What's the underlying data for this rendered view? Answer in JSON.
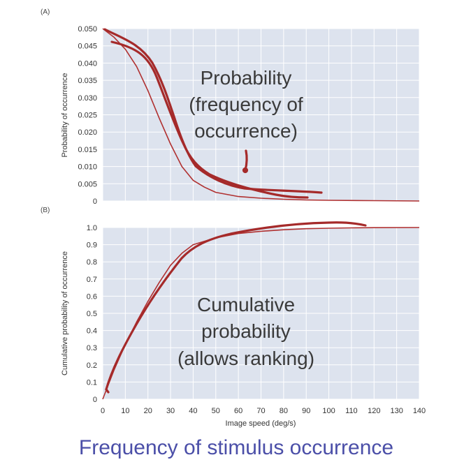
{
  "caption": "Frequency of  stimulus occurrence",
  "colors": {
    "plot_bg": "#dde3ee",
    "grid": "#ffffff",
    "curve": "#b03030",
    "ink": "#a52a2a",
    "caption": "#4b4fa8"
  },
  "chart_data": [
    {
      "panel": "(A)",
      "type": "line",
      "title": "",
      "ylabel": "Probability of occurrence",
      "xlabel": "",
      "xlim": [
        0,
        140
      ],
      "ylim": [
        0,
        0.05
      ],
      "grid": true,
      "yticks": [
        "0",
        "0.005",
        "0.010",
        "0.015",
        "0.020",
        "0.025",
        "0.030",
        "0.035",
        "0.040",
        "0.045",
        "0.050"
      ],
      "x": [
        0,
        5,
        10,
        15,
        20,
        25,
        30,
        35,
        40,
        45,
        50,
        60,
        70,
        80,
        90,
        100,
        120,
        140
      ],
      "values": [
        0.05,
        0.0475,
        0.044,
        0.039,
        0.032,
        0.024,
        0.0165,
        0.01,
        0.006,
        0.004,
        0.0025,
        0.0013,
        0.0008,
        0.0005,
        0.0003,
        0.0002,
        0.0001,
        0.0
      ],
      "annotations": [
        {
          "text": "Probability",
          "x": 68,
          "y": 0.036
        },
        {
          "text": "(frequency of",
          "x": 68,
          "y": 0.0285
        },
        {
          "text": "occurrence)",
          "x": 68,
          "y": 0.021
        }
      ]
    },
    {
      "panel": "(B)",
      "type": "line",
      "title": "",
      "ylabel": "Cumulative probability of occurrence",
      "xlabel": "Image speed (deg/s)",
      "xlim": [
        0,
        140
      ],
      "ylim": [
        0,
        1.0
      ],
      "grid": true,
      "xticks": [
        "0",
        "10",
        "20",
        "30",
        "40",
        "50",
        "60",
        "70",
        "80",
        "90",
        "100",
        "110",
        "120",
        "130",
        "140"
      ],
      "yticks": [
        "0",
        "0.1",
        "0.2",
        "0.3",
        "0.4",
        "0.5",
        "0.6",
        "0.7",
        "0.8",
        "0.9",
        "1.0"
      ],
      "x": [
        0,
        5,
        10,
        15,
        20,
        25,
        30,
        35,
        40,
        50,
        60,
        70,
        80,
        90,
        100,
        110,
        120,
        140
      ],
      "values": [
        0.0,
        0.17,
        0.32,
        0.45,
        0.57,
        0.68,
        0.78,
        0.85,
        0.9,
        0.94,
        0.965,
        0.978,
        0.987,
        0.993,
        0.996,
        0.998,
        0.999,
        1.0
      ],
      "annotations": [
        {
          "text": "Cumulative",
          "x": 68,
          "y": 0.55
        },
        {
          "text": "probability",
          "x": 68,
          "y": 0.4
        },
        {
          "text": "(allows ranking)",
          "x": 68,
          "y": 0.25
        }
      ]
    }
  ]
}
